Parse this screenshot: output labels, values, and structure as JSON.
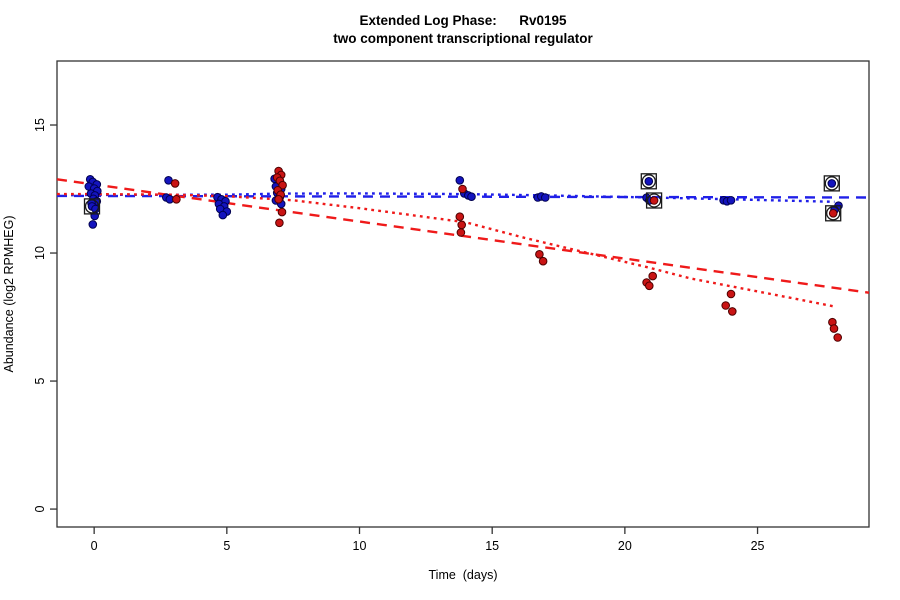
{
  "title": {
    "line1": "Extended Log Phase:      Rv0195",
    "line2": "two component transcriptional regulator"
  },
  "chart_data": {
    "type": "scatter",
    "title": "Extended Log Phase: Rv0195",
    "subtitle": "two component transcriptional regulator",
    "xlabel": "Time  (days)",
    "ylabel": "Abundance (log2 RPMHEG)",
    "xlim": [
      -1.4,
      29.2
    ],
    "ylim": [
      -0.7,
      17.5
    ],
    "x_ticks": [
      0,
      5,
      10,
      15,
      20,
      25
    ],
    "y_ticks": [
      0,
      5,
      10,
      15
    ],
    "grid": false,
    "legend": "none",
    "colors": {
      "blue_point_fill": "#1414BE",
      "blue_point_stroke": "#000050",
      "red_point_fill": "#C91414",
      "red_point_stroke": "#4D0000",
      "blue_line": "#2020E8",
      "red_line": "#EF1A1A",
      "marker_stroke": "#1a1a1a",
      "axis": "#333333"
    },
    "series": [
      {
        "name": "condition-blue",
        "color_key": "blue",
        "points": [
          [
            -0.15,
            12.88
          ],
          [
            -0.05,
            12.78
          ],
          [
            0.1,
            12.68
          ],
          [
            -0.2,
            12.6
          ],
          [
            0.0,
            12.52
          ],
          [
            0.12,
            12.42
          ],
          [
            -0.12,
            12.32
          ],
          [
            0.03,
            12.25
          ],
          [
            -0.03,
            12.12
          ],
          [
            0.1,
            12.02
          ],
          [
            -0.1,
            11.95
          ],
          [
            -0.08,
            11.82
          ],
          [
            0.05,
            11.72
          ],
          [
            0.02,
            11.45
          ],
          [
            -0.05,
            11.12
          ],
          [
            2.8,
            12.84
          ],
          [
            2.72,
            12.17
          ],
          [
            2.85,
            12.1
          ],
          [
            4.65,
            12.18
          ],
          [
            4.8,
            12.1
          ],
          [
            4.95,
            12.02
          ],
          [
            4.7,
            11.92
          ],
          [
            4.9,
            11.82
          ],
          [
            4.75,
            11.72
          ],
          [
            5.0,
            11.62
          ],
          [
            4.85,
            11.48
          ],
          [
            6.8,
            12.9
          ],
          [
            7.0,
            12.78
          ],
          [
            6.85,
            12.6
          ],
          [
            7.05,
            12.5
          ],
          [
            6.9,
            12.35
          ],
          [
            7.0,
            12.2
          ],
          [
            6.85,
            12.05
          ],
          [
            7.05,
            11.92
          ],
          [
            13.78,
            12.84
          ],
          [
            13.95,
            12.33
          ],
          [
            14.1,
            12.25
          ],
          [
            14.22,
            12.2
          ],
          [
            16.72,
            12.17
          ],
          [
            16.85,
            12.21
          ],
          [
            17.0,
            12.17
          ],
          [
            20.9,
            12.8
          ],
          [
            20.82,
            12.16
          ],
          [
            20.92,
            12.05
          ],
          [
            23.72,
            12.06
          ],
          [
            23.85,
            12.02
          ],
          [
            24.0,
            12.06
          ],
          [
            27.8,
            12.72
          ],
          [
            28.05,
            11.85
          ],
          [
            27.9,
            11.68
          ]
        ]
      },
      {
        "name": "condition-red",
        "color_key": "red",
        "points": [
          [
            3.05,
            12.72
          ],
          [
            3.1,
            12.1
          ],
          [
            6.95,
            13.2
          ],
          [
            7.05,
            13.05
          ],
          [
            6.9,
            12.95
          ],
          [
            7.0,
            12.82
          ],
          [
            7.1,
            12.65
          ],
          [
            6.92,
            12.45
          ],
          [
            7.03,
            12.28
          ],
          [
            6.95,
            12.1
          ],
          [
            7.08,
            11.6
          ],
          [
            6.98,
            11.18
          ],
          [
            13.88,
            12.5
          ],
          [
            13.78,
            11.42
          ],
          [
            13.85,
            11.1
          ],
          [
            13.82,
            10.8
          ],
          [
            16.78,
            9.95
          ],
          [
            16.92,
            9.68
          ],
          [
            21.1,
            12.05
          ],
          [
            21.05,
            9.1
          ],
          [
            20.82,
            8.85
          ],
          [
            20.92,
            8.72
          ],
          [
            24.0,
            8.4
          ],
          [
            23.8,
            7.95
          ],
          [
            24.05,
            7.72
          ],
          [
            27.85,
            11.55
          ],
          [
            27.82,
            7.3
          ],
          [
            27.88,
            7.05
          ],
          [
            28.02,
            6.7
          ]
        ]
      }
    ],
    "highlighted_points": [
      {
        "x": -0.08,
        "y": 11.82,
        "series": "blue"
      },
      {
        "x": 20.9,
        "y": 12.8,
        "series": "blue"
      },
      {
        "x": 21.1,
        "y": 12.05,
        "series": "red"
      },
      {
        "x": 27.8,
        "y": 12.72,
        "series": "blue"
      },
      {
        "x": 27.85,
        "y": 11.55,
        "series": "red"
      }
    ],
    "lines": [
      {
        "name": "blue-linear-fit",
        "style": "dashed",
        "color_key": "blue",
        "points": [
          [
            -1.4,
            12.23
          ],
          [
            29.2,
            12.17
          ]
        ]
      },
      {
        "name": "blue-lowess-fit",
        "style": "dotted",
        "color_key": "blue",
        "points": [
          [
            -1.4,
            12.25
          ],
          [
            0,
            12.27
          ],
          [
            5,
            12.28
          ],
          [
            7,
            12.32
          ],
          [
            10,
            12.33
          ],
          [
            14,
            12.3
          ],
          [
            17,
            12.25
          ],
          [
            21,
            12.17
          ],
          [
            24,
            12.1
          ],
          [
            27.9,
            12.0
          ]
        ]
      },
      {
        "name": "red-linear-fit",
        "style": "dashed",
        "color_key": "red",
        "points": [
          [
            -1.4,
            12.88
          ],
          [
            29.2,
            8.45
          ]
        ]
      },
      {
        "name": "red-lowess-fit",
        "style": "dotted",
        "color_key": "red",
        "points": [
          [
            -1.4,
            12.3
          ],
          [
            0,
            12.3
          ],
          [
            3,
            12.28
          ],
          [
            5,
            12.22
          ],
          [
            7.5,
            12.06
          ],
          [
            10,
            11.75
          ],
          [
            14,
            11.2
          ],
          [
            16.2,
            10.6
          ],
          [
            18.6,
            10.0
          ],
          [
            20.9,
            9.43
          ],
          [
            22.5,
            9.0
          ],
          [
            24,
            8.7
          ],
          [
            26.2,
            8.26
          ],
          [
            27.9,
            7.91
          ]
        ]
      }
    ]
  }
}
